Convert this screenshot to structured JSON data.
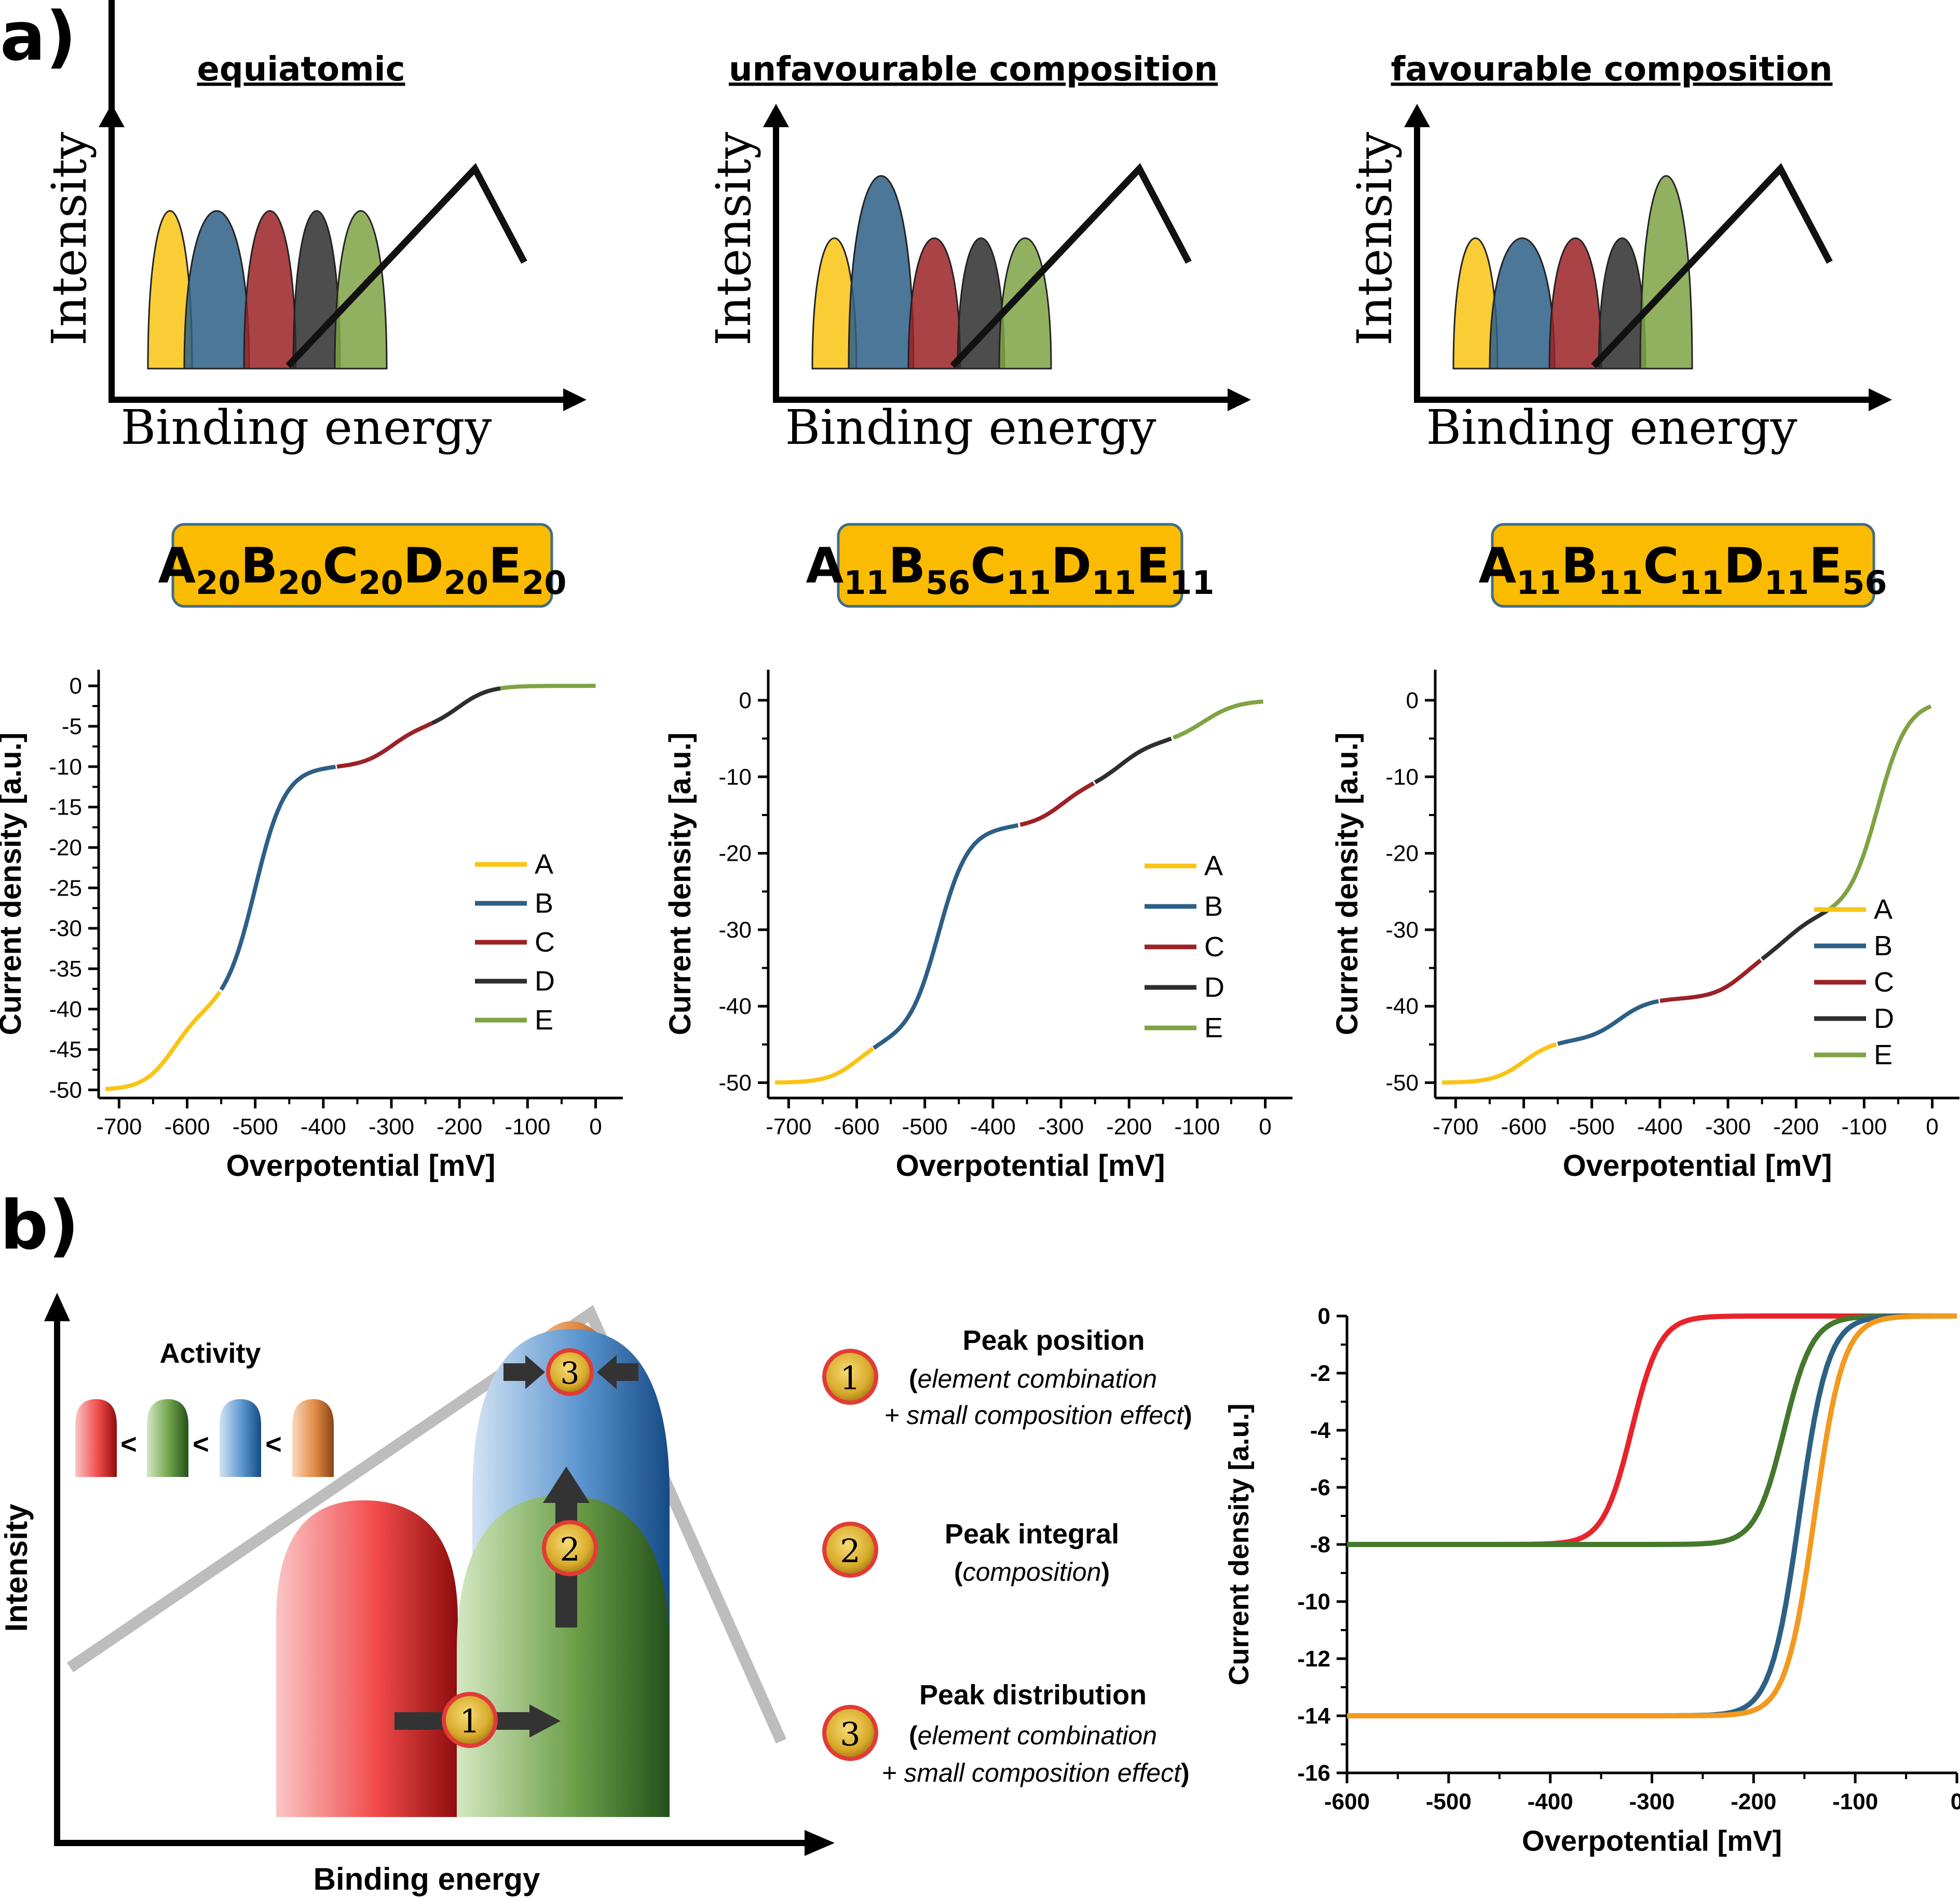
{
  "panel_a": {
    "letter": "a)",
    "diagrams": [
      {
        "title": "equiatomic",
        "ylabel": "Intensity",
        "xlabel": "Binding energy",
        "formula": [
          [
            "A",
            "20"
          ],
          [
            "B",
            "20"
          ],
          [
            "C",
            "20"
          ],
          [
            "D",
            "20"
          ],
          [
            "E",
            "20"
          ]
        ]
      },
      {
        "title": "unfavourable composition",
        "ylabel": "Intensity",
        "xlabel": "Binding energy",
        "formula": [
          [
            "A",
            "11"
          ],
          [
            "B",
            "56"
          ],
          [
            "C",
            "11"
          ],
          [
            "D",
            "11"
          ],
          [
            "E",
            "11"
          ]
        ]
      },
      {
        "title": "favourable composition",
        "ylabel": "Intensity",
        "xlabel": "Binding energy",
        "formula": [
          [
            "A",
            "11"
          ],
          [
            "B",
            "11"
          ],
          [
            "C",
            "11"
          ],
          [
            "D",
            "11"
          ],
          [
            "E",
            "56"
          ]
        ]
      }
    ]
  },
  "colors": {
    "A": "#f9c414",
    "B": "#2d5f86",
    "C": "#9b2226",
    "D": "#2e2e2e",
    "E": "#7fa344",
    "formula_box": "#fbbb00"
  },
  "panel_b": {
    "letter": "b)",
    "diagram": {
      "ylabel": "Intensity",
      "xlabel": "Binding energy",
      "activity_title": "Activity",
      "activity_sep": "<",
      "markers": [
        "1",
        "2",
        "3"
      ]
    },
    "legend_items": [
      {
        "num": "1",
        "title": "Peak position",
        "line1_a": "(",
        "line1_b": "element combination",
        "line2_b": "+ small composition effect",
        "line2_c": ")"
      },
      {
        "num": "2",
        "title": "Peak integral",
        "line1_a": "(",
        "line1_b": "composition",
        "line1_c": ")"
      },
      {
        "num": "3",
        "title": "Peak distribution",
        "line1_a": "(",
        "line1_b": "element combination",
        "line2_b": "+ small composition effect",
        "line2_c": ")"
      }
    ]
  },
  "chart_data": [
    {
      "type": "line",
      "xlabel": "Overpotential [mV]",
      "ylabel": "Current density [a.u.]",
      "xlim": [
        -730,
        40
      ],
      "ylim": [
        -51,
        2
      ],
      "xticks": [
        -700,
        -600,
        -500,
        -400,
        -300,
        -200,
        -100,
        0
      ],
      "yticks": [
        0,
        -5,
        -10,
        -15,
        -20,
        -25,
        -30,
        -35,
        -40,
        -45,
        -50
      ],
      "legend": [
        "A",
        "B",
        "C",
        "D",
        "E"
      ],
      "curve": {
        "x_start": -720,
        "x_end": 0,
        "total": 50,
        "steps": [
          [
            10,
            -620
          ],
          [
            30,
            -500
          ],
          [
            5,
            -300
          ],
          [
            5,
            -200
          ],
          [
            0,
            -100
          ]
        ]
      },
      "segments": [
        [
          -720,
          -550,
          "A"
        ],
        [
          -550,
          -380,
          "B"
        ],
        [
          -380,
          -240,
          "C"
        ],
        [
          -240,
          -140,
          "D"
        ],
        [
          -140,
          0,
          "E"
        ]
      ]
    },
    {
      "type": "line",
      "xlabel": "Overpotential [mV]",
      "ylabel": "Current density [a.u.]",
      "xlim": [
        -730,
        40
      ],
      "ylim": [
        -52,
        4
      ],
      "xticks": [
        -700,
        -600,
        -500,
        -400,
        -300,
        -200,
        -100,
        0
      ],
      "yticks": [
        0,
        -10,
        -20,
        -30,
        -40,
        -50
      ],
      "legend": [
        "A",
        "B",
        "C",
        "D",
        "E"
      ],
      "curve": {
        "x_start": -720,
        "x_end": 0,
        "total": 50,
        "steps": [
          [
            5.5,
            -600
          ],
          [
            28,
            -480
          ],
          [
            5.5,
            -300
          ],
          [
            5.5,
            -210
          ],
          [
            0,
            -100
          ]
        ]
      },
      "segments": [
        [
          -720,
          -575,
          "A"
        ],
        [
          -575,
          -360,
          "B"
        ],
        [
          -360,
          -250,
          "C"
        ],
        [
          -250,
          -135,
          "D"
        ],
        [
          -135,
          0,
          "E"
        ]
      ]
    },
    {
      "type": "line",
      "xlabel": "Overpotential [mV]",
      "ylabel": "Current density [a.u.]",
      "xlim": [
        -730,
        40
      ],
      "ylim": [
        -52,
        4
      ],
      "xticks": [
        -700,
        -600,
        -500,
        -400,
        -300,
        -200,
        -100,
        0
      ],
      "yticks": [
        0,
        -10,
        -20,
        -30,
        -40,
        -50
      ],
      "legend": [
        "A",
        "B",
        "C",
        "D",
        "E"
      ],
      "curve": {
        "x_start": -720,
        "x_end": 0,
        "total": 50,
        "steps": [
          [
            5.5,
            -600
          ],
          [
            5.5,
            -460
          ],
          [
            5.5,
            -280
          ],
          [
            28,
            -80
          ],
          [
            5.5,
            -210
          ]
        ]
      },
      "segments": [
        [
          -720,
          -550,
          "A"
        ],
        [
          -550,
          -400,
          "B"
        ],
        [
          -400,
          -250,
          "C"
        ],
        [
          -250,
          -150,
          "D"
        ],
        [
          -150,
          0,
          "E"
        ]
      ]
    },
    {
      "type": "line",
      "xlabel": "Overpotential [mV]",
      "ylabel": "Current density [a.u.]",
      "xlim": [
        -600,
        0
      ],
      "ylim": [
        -16,
        0
      ],
      "xticks": [
        -600,
        -500,
        -400,
        -300,
        -200,
        -100,
        0
      ],
      "yticks": [
        0,
        -2,
        -4,
        -6,
        -8,
        -10,
        -12,
        -14,
        -16
      ],
      "series": [
        {
          "color": "#e8242b",
          "plateau": -8,
          "center": -320
        },
        {
          "color": "#44782c",
          "plateau": -8,
          "center": -170
        },
        {
          "color": "#2d6183",
          "plateau": -14,
          "center": -155
        },
        {
          "color": "#f2991e",
          "plateau": -14,
          "center": -140
        }
      ]
    }
  ]
}
